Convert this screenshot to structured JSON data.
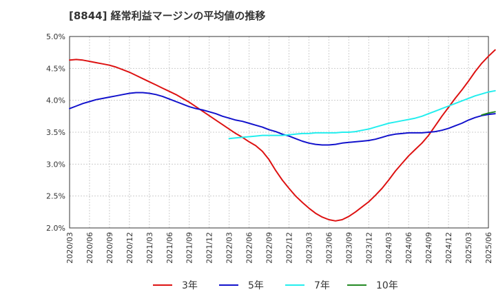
{
  "chart_data": {
    "type": "line",
    "title": "[8844]  経常利益マージンの平均値の推移",
    "x_tick_labels": [
      "2020/03",
      "2020/06",
      "2020/09",
      "2020/12",
      "2021/03",
      "2021/06",
      "2021/09",
      "2021/12",
      "2022/03",
      "2022/06",
      "2022/09",
      "2022/12",
      "2023/03",
      "2023/06",
      "2023/09",
      "2023/12",
      "2024/03",
      "2024/06",
      "2024/09",
      "2024/12",
      "2025/03",
      "2025/06"
    ],
    "y_tick_labels": [
      "2.0%",
      "2.5%",
      "3.0%",
      "3.5%",
      "4.0%",
      "4.5%",
      "5.0%"
    ],
    "ylim": [
      2.0,
      5.0
    ],
    "y_unit": "%",
    "grid": true,
    "legend_position": "bottom",
    "series": [
      {
        "name": "3年",
        "color": "#dd1111",
        "points": [
          [
            "2020/03",
            4.63
          ],
          [
            "2020/04",
            4.64
          ],
          [
            "2020/05",
            4.63
          ],
          [
            "2020/06",
            4.61
          ],
          [
            "2020/07",
            4.59
          ],
          [
            "2020/08",
            4.57
          ],
          [
            "2020/09",
            4.55
          ],
          [
            "2020/10",
            4.52
          ],
          [
            "2020/11",
            4.48
          ],
          [
            "2020/12",
            4.44
          ],
          [
            "2021/01",
            4.39
          ],
          [
            "2021/02",
            4.34
          ],
          [
            "2021/03",
            4.29
          ],
          [
            "2021/04",
            4.24
          ],
          [
            "2021/05",
            4.19
          ],
          [
            "2021/06",
            4.14
          ],
          [
            "2021/07",
            4.09
          ],
          [
            "2021/08",
            4.03
          ],
          [
            "2021/09",
            3.97
          ],
          [
            "2021/10",
            3.9
          ],
          [
            "2021/11",
            3.83
          ],
          [
            "2021/12",
            3.76
          ],
          [
            "2022/01",
            3.69
          ],
          [
            "2022/02",
            3.62
          ],
          [
            "2022/03",
            3.55
          ],
          [
            "2022/04",
            3.48
          ],
          [
            "2022/05",
            3.42
          ],
          [
            "2022/06",
            3.35
          ],
          [
            "2022/07",
            3.29
          ],
          [
            "2022/08",
            3.2
          ],
          [
            "2022/09",
            3.07
          ],
          [
            "2022/10",
            2.9
          ],
          [
            "2022/11",
            2.75
          ],
          [
            "2022/12",
            2.62
          ],
          [
            "2023/01",
            2.5
          ],
          [
            "2023/02",
            2.4
          ],
          [
            "2023/03",
            2.31
          ],
          [
            "2023/04",
            2.23
          ],
          [
            "2023/05",
            2.17
          ],
          [
            "2023/06",
            2.13
          ],
          [
            "2023/07",
            2.11
          ],
          [
            "2023/08",
            2.13
          ],
          [
            "2023/09",
            2.18
          ],
          [
            "2023/10",
            2.25
          ],
          [
            "2023/11",
            2.33
          ],
          [
            "2023/12",
            2.41
          ],
          [
            "2024/01",
            2.51
          ],
          [
            "2024/02",
            2.62
          ],
          [
            "2024/03",
            2.75
          ],
          [
            "2024/04",
            2.89
          ],
          [
            "2024/05",
            3.01
          ],
          [
            "2024/06",
            3.13
          ],
          [
            "2024/07",
            3.23
          ],
          [
            "2024/08",
            3.33
          ],
          [
            "2024/09",
            3.45
          ],
          [
            "2024/10",
            3.6
          ],
          [
            "2024/11",
            3.75
          ],
          [
            "2024/12",
            3.89
          ],
          [
            "2025/01",
            4.03
          ],
          [
            "2025/02",
            4.16
          ],
          [
            "2025/03",
            4.3
          ],
          [
            "2025/04",
            4.45
          ],
          [
            "2025/05",
            4.58
          ],
          [
            "2025/06",
            4.69
          ],
          [
            "2025/07",
            4.79
          ]
        ]
      },
      {
        "name": "5年",
        "color": "#1111cc",
        "points": [
          [
            "2020/03",
            3.87
          ],
          [
            "2020/04",
            3.91
          ],
          [
            "2020/05",
            3.95
          ],
          [
            "2020/06",
            3.98
          ],
          [
            "2020/07",
            4.01
          ],
          [
            "2020/08",
            4.03
          ],
          [
            "2020/09",
            4.05
          ],
          [
            "2020/10",
            4.07
          ],
          [
            "2020/11",
            4.09
          ],
          [
            "2020/12",
            4.11
          ],
          [
            "2021/01",
            4.12
          ],
          [
            "2021/02",
            4.12
          ],
          [
            "2021/03",
            4.11
          ],
          [
            "2021/04",
            4.09
          ],
          [
            "2021/05",
            4.06
          ],
          [
            "2021/06",
            4.02
          ],
          [
            "2021/07",
            3.98
          ],
          [
            "2021/08",
            3.94
          ],
          [
            "2021/09",
            3.9
          ],
          [
            "2021/10",
            3.87
          ],
          [
            "2021/11",
            3.85
          ],
          [
            "2021/12",
            3.82
          ],
          [
            "2022/01",
            3.79
          ],
          [
            "2022/02",
            3.75
          ],
          [
            "2022/03",
            3.72
          ],
          [
            "2022/04",
            3.69
          ],
          [
            "2022/05",
            3.67
          ],
          [
            "2022/06",
            3.64
          ],
          [
            "2022/07",
            3.61
          ],
          [
            "2022/08",
            3.58
          ],
          [
            "2022/09",
            3.54
          ],
          [
            "2022/10",
            3.51
          ],
          [
            "2022/11",
            3.47
          ],
          [
            "2022/12",
            3.44
          ],
          [
            "2023/01",
            3.4
          ],
          [
            "2023/02",
            3.36
          ],
          [
            "2023/03",
            3.33
          ],
          [
            "2023/04",
            3.31
          ],
          [
            "2023/05",
            3.3
          ],
          [
            "2023/06",
            3.3
          ],
          [
            "2023/07",
            3.31
          ],
          [
            "2023/08",
            3.33
          ],
          [
            "2023/09",
            3.34
          ],
          [
            "2023/10",
            3.35
          ],
          [
            "2023/11",
            3.36
          ],
          [
            "2023/12",
            3.37
          ],
          [
            "2024/01",
            3.39
          ],
          [
            "2024/02",
            3.42
          ],
          [
            "2024/03",
            3.45
          ],
          [
            "2024/04",
            3.47
          ],
          [
            "2024/05",
            3.48
          ],
          [
            "2024/06",
            3.49
          ],
          [
            "2024/07",
            3.49
          ],
          [
            "2024/08",
            3.49
          ],
          [
            "2024/09",
            3.5
          ],
          [
            "2024/10",
            3.51
          ],
          [
            "2024/11",
            3.53
          ],
          [
            "2024/12",
            3.56
          ],
          [
            "2025/01",
            3.6
          ],
          [
            "2025/02",
            3.64
          ],
          [
            "2025/03",
            3.69
          ],
          [
            "2025/04",
            3.73
          ],
          [
            "2025/05",
            3.76
          ],
          [
            "2025/06",
            3.78
          ],
          [
            "2025/07",
            3.79
          ]
        ]
      },
      {
        "name": "7年",
        "color": "#22eeee",
        "points": [
          [
            "2022/03",
            3.4
          ],
          [
            "2022/04",
            3.41
          ],
          [
            "2022/05",
            3.42
          ],
          [
            "2022/06",
            3.43
          ],
          [
            "2022/07",
            3.44
          ],
          [
            "2022/08",
            3.45
          ],
          [
            "2022/09",
            3.45
          ],
          [
            "2022/10",
            3.45
          ],
          [
            "2022/11",
            3.45
          ],
          [
            "2022/12",
            3.46
          ],
          [
            "2023/01",
            3.47
          ],
          [
            "2023/02",
            3.48
          ],
          [
            "2023/03",
            3.48
          ],
          [
            "2023/04",
            3.49
          ],
          [
            "2023/05",
            3.49
          ],
          [
            "2023/06",
            3.49
          ],
          [
            "2023/07",
            3.49
          ],
          [
            "2023/08",
            3.5
          ],
          [
            "2023/09",
            3.5
          ],
          [
            "2023/10",
            3.51
          ],
          [
            "2023/11",
            3.53
          ],
          [
            "2023/12",
            3.55
          ],
          [
            "2024/01",
            3.58
          ],
          [
            "2024/02",
            3.61
          ],
          [
            "2024/03",
            3.64
          ],
          [
            "2024/04",
            3.66
          ],
          [
            "2024/05",
            3.68
          ],
          [
            "2024/06",
            3.7
          ],
          [
            "2024/07",
            3.72
          ],
          [
            "2024/08",
            3.75
          ],
          [
            "2024/09",
            3.79
          ],
          [
            "2024/10",
            3.83
          ],
          [
            "2024/11",
            3.87
          ],
          [
            "2024/12",
            3.91
          ],
          [
            "2025/01",
            3.95
          ],
          [
            "2025/02",
            3.99
          ],
          [
            "2025/03",
            4.03
          ],
          [
            "2025/04",
            4.07
          ],
          [
            "2025/05",
            4.1
          ],
          [
            "2025/06",
            4.13
          ],
          [
            "2025/07",
            4.15
          ]
        ]
      },
      {
        "name": "10年",
        "color": "#228822",
        "points": [
          [
            "2025/05",
            3.77
          ],
          [
            "2025/06",
            3.8
          ],
          [
            "2025/07",
            3.82
          ]
        ]
      }
    ]
  }
}
